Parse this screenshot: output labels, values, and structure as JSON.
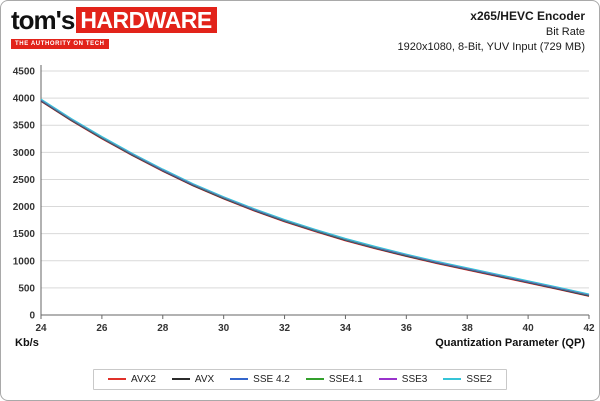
{
  "header": {
    "logo": {
      "toms": "tom's",
      "hardware": "HARDWARE",
      "tagline": "THE AUTHORITY ON TECH"
    },
    "title": "x265/HEVC Encoder",
    "subtitle": "Bit Rate",
    "subtitle2": "1920x1080, 8-Bit, YUV Input (729 MB)"
  },
  "chart_data": {
    "type": "line",
    "title": "x265/HEVC Encoder",
    "subtitle": "Bit Rate",
    "xlabel": "Quantization Parameter (QP)",
    "ylabel": "Kb/s",
    "xlim": [
      24,
      42
    ],
    "ylim": [
      0,
      4500
    ],
    "xticks": [
      24,
      26,
      28,
      30,
      32,
      34,
      36,
      38,
      40,
      42
    ],
    "yticks": [
      0,
      500,
      1000,
      1500,
      2000,
      2500,
      3000,
      3500,
      4000,
      4500
    ],
    "grid": "horizontal",
    "legend_position": "bottom",
    "x": [
      24,
      25,
      26,
      27,
      28,
      29,
      30,
      31,
      32,
      33,
      34,
      35,
      36,
      37,
      38,
      39,
      40,
      41,
      42
    ],
    "series": [
      {
        "name": "AVX2",
        "color": "#e0312a",
        "values": [
          3960,
          3600,
          3270,
          2960,
          2670,
          2400,
          2160,
          1940,
          1740,
          1560,
          1390,
          1240,
          1100,
          970,
          850,
          730,
          610,
          490,
          365
        ]
      },
      {
        "name": "AVX",
        "color": "#2b2b2b",
        "values": [
          3960,
          3600,
          3270,
          2960,
          2670,
          2400,
          2160,
          1940,
          1740,
          1560,
          1390,
          1240,
          1100,
          970,
          850,
          730,
          610,
          490,
          365
        ]
      },
      {
        "name": "SSE 4.2",
        "color": "#3366cc",
        "values": [
          3960,
          3600,
          3270,
          2960,
          2670,
          2400,
          2160,
          1940,
          1740,
          1560,
          1390,
          1240,
          1100,
          970,
          850,
          730,
          610,
          490,
          365
        ]
      },
      {
        "name": "SSE4.1",
        "color": "#33a02c",
        "values": [
          3960,
          3600,
          3270,
          2960,
          2670,
          2400,
          2160,
          1940,
          1740,
          1560,
          1390,
          1240,
          1100,
          970,
          850,
          730,
          610,
          490,
          365
        ]
      },
      {
        "name": "SSE3",
        "color": "#9933cc",
        "values": [
          3960,
          3600,
          3270,
          2960,
          2670,
          2400,
          2160,
          1940,
          1740,
          1560,
          1390,
          1240,
          1100,
          970,
          850,
          730,
          610,
          490,
          365
        ]
      },
      {
        "name": "SSE2",
        "color": "#35c4d7",
        "values": [
          3960,
          3600,
          3270,
          2960,
          2670,
          2400,
          2160,
          1940,
          1740,
          1560,
          1390,
          1240,
          1100,
          970,
          850,
          730,
          610,
          490,
          365
        ]
      }
    ]
  }
}
